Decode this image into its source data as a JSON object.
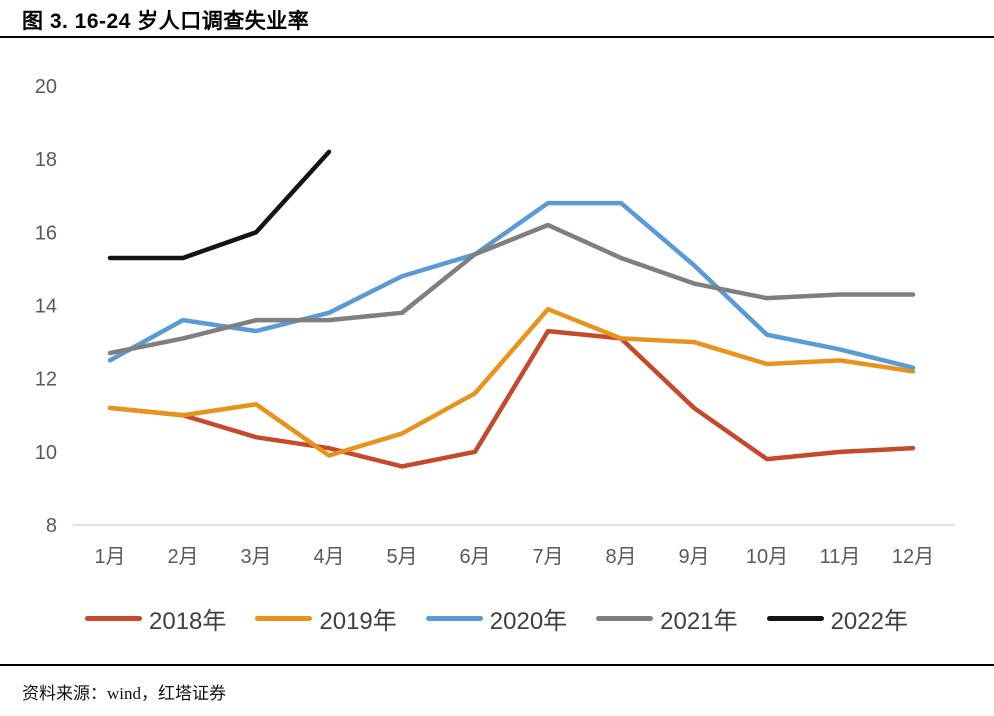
{
  "header": {
    "title": "图 3. 16-24 岁人口调查失业率"
  },
  "footer": {
    "source": "资料来源：wind，红塔证券"
  },
  "chart_data": {
    "type": "line",
    "title": "16-24岁人口调查失业率",
    "categories": [
      "1月",
      "2月",
      "3月",
      "4月",
      "5月",
      "6月",
      "7月",
      "8月",
      "9月",
      "10月",
      "11月",
      "12月"
    ],
    "series": [
      {
        "name": "2018年",
        "color": "#C5492B",
        "values": [
          11.2,
          11.0,
          10.4,
          10.1,
          9.6,
          10.0,
          13.3,
          13.1,
          11.2,
          9.8,
          10.0,
          10.1
        ]
      },
      {
        "name": "2019年",
        "color": "#E8931C",
        "values": [
          11.2,
          11.0,
          11.3,
          9.9,
          10.5,
          11.6,
          13.9,
          13.1,
          13.0,
          12.4,
          12.5,
          12.2
        ]
      },
      {
        "name": "2020年",
        "color": "#5B9BD5",
        "values": [
          12.5,
          13.6,
          13.3,
          13.8,
          14.8,
          15.4,
          16.8,
          16.8,
          15.1,
          13.2,
          12.8,
          12.3
        ]
      },
      {
        "name": "2021年",
        "color": "#7F7F7F",
        "values": [
          12.7,
          13.1,
          13.6,
          13.6,
          13.8,
          15.4,
          16.2,
          15.3,
          14.6,
          14.2,
          14.3,
          14.3
        ]
      },
      {
        "name": "2022年",
        "color": "#141414",
        "values": [
          15.3,
          15.3,
          16.0,
          18.2
        ]
      }
    ],
    "ylim": [
      8,
      20
    ],
    "yticks": [
      8,
      10,
      12,
      14,
      16,
      18,
      20
    ],
    "grid": false,
    "legend_position": "bottom",
    "axis_line_color": "#D9D9D9",
    "tick_label_color": "#595959",
    "line_width": 4.5
  }
}
